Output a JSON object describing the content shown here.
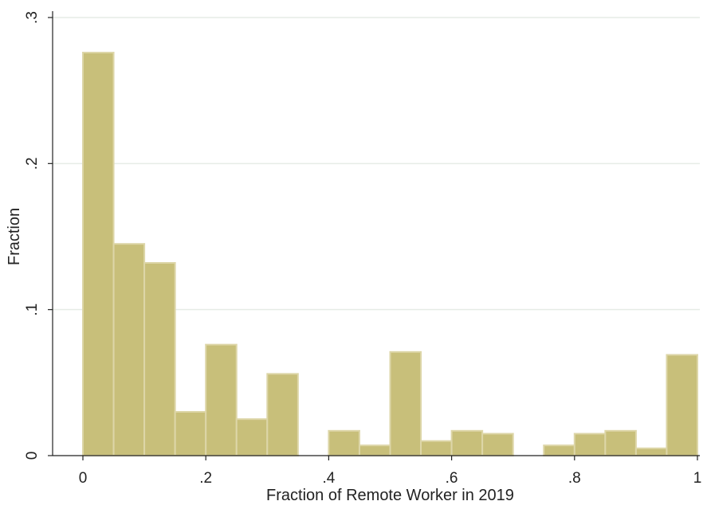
{
  "chart_data": {
    "type": "bar",
    "title": "",
    "xlabel": "Fraction of Remote Worker in 2019",
    "ylabel": "Fraction",
    "bin_width": 0.05,
    "bin_starts": [
      0,
      0.05,
      0.1,
      0.15,
      0.2,
      0.25,
      0.3,
      0.35,
      0.4,
      0.45,
      0.5,
      0.55,
      0.6,
      0.65,
      0.7,
      0.75,
      0.8,
      0.85,
      0.9,
      0.95
    ],
    "values": [
      0.276,
      0.145,
      0.132,
      0.03,
      0.076,
      0.025,
      0.056,
      0,
      0.017,
      0.007,
      0.071,
      0.01,
      0.017,
      0.015,
      0,
      0.007,
      0.015,
      0.017,
      0.005,
      0.069
    ],
    "xlim": [
      0,
      1
    ],
    "ylim": [
      0,
      0.3
    ],
    "xticks": [
      0,
      0.2,
      0.4,
      0.6,
      0.8,
      1
    ],
    "xtick_labels": [
      "0",
      ".2",
      ".4",
      ".6",
      ".8",
      "1"
    ],
    "yticks": [
      0,
      0.1,
      0.2,
      0.3
    ],
    "ytick_labels": [
      "0",
      ".1",
      ".2",
      ".3"
    ],
    "grid": true,
    "bar_color": "#c8bf7a",
    "bar_edge_color": "#ddd6a8",
    "grid_color": "#e6ece6"
  }
}
